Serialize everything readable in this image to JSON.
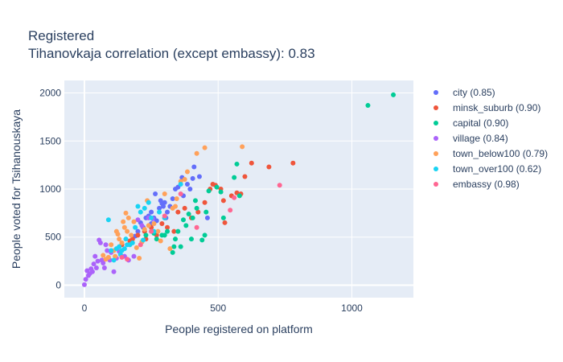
{
  "chart_data": {
    "type": "scatter",
    "title": "Registered",
    "subtitle": "Tihanovkaja correlation (except embassy): 0.83",
    "xlabel": "People registered on platform",
    "ylabel": "People voted for Tsihanouskaya",
    "xlim": [
      -75,
      1230
    ],
    "ylim": [
      -130,
      2130
    ],
    "xticks": [
      0,
      500,
      1000
    ],
    "yticks": [
      0,
      500,
      1000,
      1500,
      2000
    ],
    "grid": true,
    "legend_position": "right",
    "background": "#e5ecf6",
    "series": [
      {
        "name": "city (0.85)",
        "color": "#636efa",
        "points": [
          [
            200,
            560
          ],
          [
            210,
            650
          ],
          [
            230,
            700
          ],
          [
            240,
            720
          ],
          [
            250,
            760
          ],
          [
            260,
            700
          ],
          [
            265,
            950
          ],
          [
            280,
            800
          ],
          [
            285,
            880
          ],
          [
            290,
            850
          ],
          [
            295,
            820
          ],
          [
            300,
            860
          ],
          [
            305,
            700
          ],
          [
            310,
            760
          ],
          [
            320,
            820
          ],
          [
            330,
            900
          ],
          [
            340,
            1000
          ],
          [
            350,
            1020
          ],
          [
            365,
            1120
          ],
          [
            370,
            930
          ],
          [
            385,
            1050
          ],
          [
            395,
            1000
          ],
          [
            405,
            1110
          ],
          [
            410,
            1230
          ],
          [
            430,
            1130
          ],
          [
            460,
            700
          ],
          [
            190,
            510
          ],
          [
            220,
            600
          ],
          [
            250,
            640
          ],
          [
            270,
            670
          ]
        ]
      },
      {
        "name": "minsk_suburb (0.90)",
        "color": "#ef553b",
        "points": [
          [
            140,
            420
          ],
          [
            170,
            460
          ],
          [
            200,
            520
          ],
          [
            225,
            560
          ],
          [
            250,
            600
          ],
          [
            270,
            520
          ],
          [
            290,
            640
          ],
          [
            300,
            700
          ],
          [
            310,
            600
          ],
          [
            335,
            560
          ],
          [
            350,
            760
          ],
          [
            375,
            800
          ],
          [
            400,
            700
          ],
          [
            425,
            760
          ],
          [
            450,
            860
          ],
          [
            470,
            1000
          ],
          [
            480,
            1050
          ],
          [
            490,
            1040
          ],
          [
            510,
            1000
          ],
          [
            520,
            880
          ],
          [
            525,
            650
          ],
          [
            550,
            930
          ],
          [
            570,
            960
          ],
          [
            585,
            950
          ],
          [
            600,
            1130
          ],
          [
            625,
            1270
          ],
          [
            690,
            1230
          ],
          [
            780,
            1270
          ],
          [
            180,
            480
          ],
          [
            230,
            480
          ]
        ]
      },
      {
        "name": "capital (0.90)",
        "color": "#00cc96",
        "points": [
          [
            230,
            520
          ],
          [
            260,
            540
          ],
          [
            270,
            480
          ],
          [
            290,
            520
          ],
          [
            300,
            520
          ],
          [
            310,
            560
          ],
          [
            330,
            340
          ],
          [
            335,
            400
          ],
          [
            340,
            480
          ],
          [
            350,
            560
          ],
          [
            360,
            400
          ],
          [
            370,
            680
          ],
          [
            380,
            620
          ],
          [
            390,
            740
          ],
          [
            400,
            480
          ],
          [
            405,
            700
          ],
          [
            415,
            880
          ],
          [
            420,
            800
          ],
          [
            440,
            470
          ],
          [
            450,
            520
          ],
          [
            455,
            760
          ],
          [
            465,
            980
          ],
          [
            495,
            1020
          ],
          [
            510,
            970
          ],
          [
            520,
            700
          ],
          [
            560,
            1120
          ],
          [
            570,
            1260
          ],
          [
            580,
            930
          ],
          [
            1060,
            1870
          ],
          [
            1155,
            1980
          ]
        ]
      },
      {
        "name": "village (0.84)",
        "color": "#ab63fa",
        "points": [
          [
            0,
            5
          ],
          [
            5,
            60
          ],
          [
            10,
            150
          ],
          [
            15,
            100
          ],
          [
            20,
            120
          ],
          [
            25,
            170
          ],
          [
            30,
            140
          ],
          [
            35,
            220
          ],
          [
            40,
            300
          ],
          [
            45,
            180
          ],
          [
            50,
            250
          ],
          [
            55,
            470
          ],
          [
            60,
            440
          ],
          [
            65,
            260
          ],
          [
            70,
            230
          ],
          [
            75,
            180
          ],
          [
            80,
            420
          ],
          [
            85,
            360
          ],
          [
            95,
            260
          ],
          [
            100,
            340
          ],
          [
            110,
            140
          ],
          [
            120,
            280
          ],
          [
            130,
            350
          ],
          [
            150,
            300
          ],
          [
            165,
            260
          ],
          [
            185,
            300
          ],
          [
            200,
            680
          ],
          [
            215,
            620
          ],
          [
            240,
            700
          ],
          [
            255,
            690
          ]
        ]
      },
      {
        "name": "town_below100 (0.79)",
        "color": "#ffa15a",
        "points": [
          [
            70,
            310
          ],
          [
            80,
            270
          ],
          [
            90,
            290
          ],
          [
            100,
            420
          ],
          [
            110,
            360
          ],
          [
            115,
            300
          ],
          [
            120,
            560
          ],
          [
            125,
            530
          ],
          [
            130,
            480
          ],
          [
            140,
            440
          ],
          [
            145,
            660
          ],
          [
            150,
            600
          ],
          [
            155,
            750
          ],
          [
            160,
            560
          ],
          [
            165,
            700
          ],
          [
            170,
            420
          ],
          [
            175,
            520
          ],
          [
            185,
            660
          ],
          [
            195,
            390
          ],
          [
            205,
            280
          ],
          [
            215,
            450
          ],
          [
            225,
            580
          ],
          [
            235,
            880
          ],
          [
            240,
            620
          ],
          [
            260,
            640
          ],
          [
            275,
            560
          ],
          [
            285,
            460
          ],
          [
            300,
            950
          ],
          [
            320,
            380
          ],
          [
            330,
            800
          ],
          [
            340,
            820
          ],
          [
            345,
            900
          ],
          [
            360,
            1080
          ],
          [
            375,
            1100
          ],
          [
            385,
            1180
          ],
          [
            420,
            1370
          ],
          [
            450,
            1430
          ],
          [
            590,
            1440
          ]
        ]
      },
      {
        "name": "town_over100 (0.62)",
        "color": "#19d3f3",
        "points": [
          [
            90,
            680
          ],
          [
            100,
            360
          ],
          [
            110,
            260
          ],
          [
            120,
            380
          ],
          [
            130,
            400
          ],
          [
            135,
            320
          ],
          [
            140,
            360
          ],
          [
            150,
            380
          ],
          [
            155,
            480
          ],
          [
            160,
            420
          ],
          [
            170,
            420
          ],
          [
            180,
            440
          ],
          [
            190,
            600
          ],
          [
            200,
            820
          ],
          [
            210,
            760
          ],
          [
            220,
            470
          ],
          [
            225,
            800
          ],
          [
            240,
            860
          ],
          [
            250,
            700
          ],
          [
            260,
            560
          ],
          [
            280,
            760
          ],
          [
            300,
            700
          ],
          [
            360,
            1050
          ]
        ]
      },
      {
        "name": "embassy (0.98)",
        "color": "#ff6692",
        "points": [
          [
            140,
            290
          ],
          [
            160,
            270
          ],
          [
            210,
            420
          ],
          [
            250,
            560
          ],
          [
            300,
            720
          ],
          [
            360,
            950
          ],
          [
            420,
            600
          ],
          [
            545,
            780
          ],
          [
            560,
            910
          ],
          [
            730,
            1040
          ]
        ]
      }
    ]
  }
}
